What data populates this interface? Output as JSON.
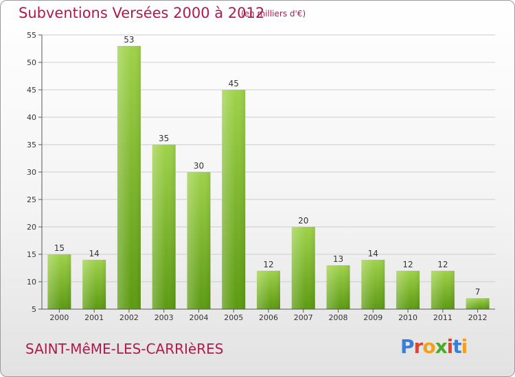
{
  "header": {
    "title": "Subventions Versées 2000 à 2012",
    "unit": "(en milliers d'€)"
  },
  "footer": {
    "commune": "SAINT-MêME-LES-CARRIèRES",
    "brand": "Proxiti",
    "brand_colors": [
      "#3a7fd5",
      "#e0442e",
      "#f0a020",
      "#4aaa2a",
      "#e0442e",
      "#3a7fd5",
      "#f0a020"
    ]
  },
  "colors": {
    "title": "#b0194a",
    "bar_light": "#9fd24a",
    "bar_dark": "#5c9a12",
    "grid": "#cccccc"
  },
  "chart_data": {
    "type": "bar",
    "categories": [
      "2000",
      "2001",
      "2002",
      "2003",
      "2004",
      "2005",
      "2006",
      "2007",
      "2008",
      "2009",
      "2010",
      "2011",
      "2012"
    ],
    "values": [
      15,
      14,
      53,
      35,
      30,
      45,
      12,
      20,
      13,
      14,
      12,
      12,
      7
    ],
    "yticks": [
      5,
      10,
      15,
      20,
      25,
      30,
      35,
      40,
      45,
      50,
      55
    ],
    "ylim": [
      5,
      55
    ],
    "grid": true,
    "title": "Subventions Versées 2000 à 2012"
  }
}
